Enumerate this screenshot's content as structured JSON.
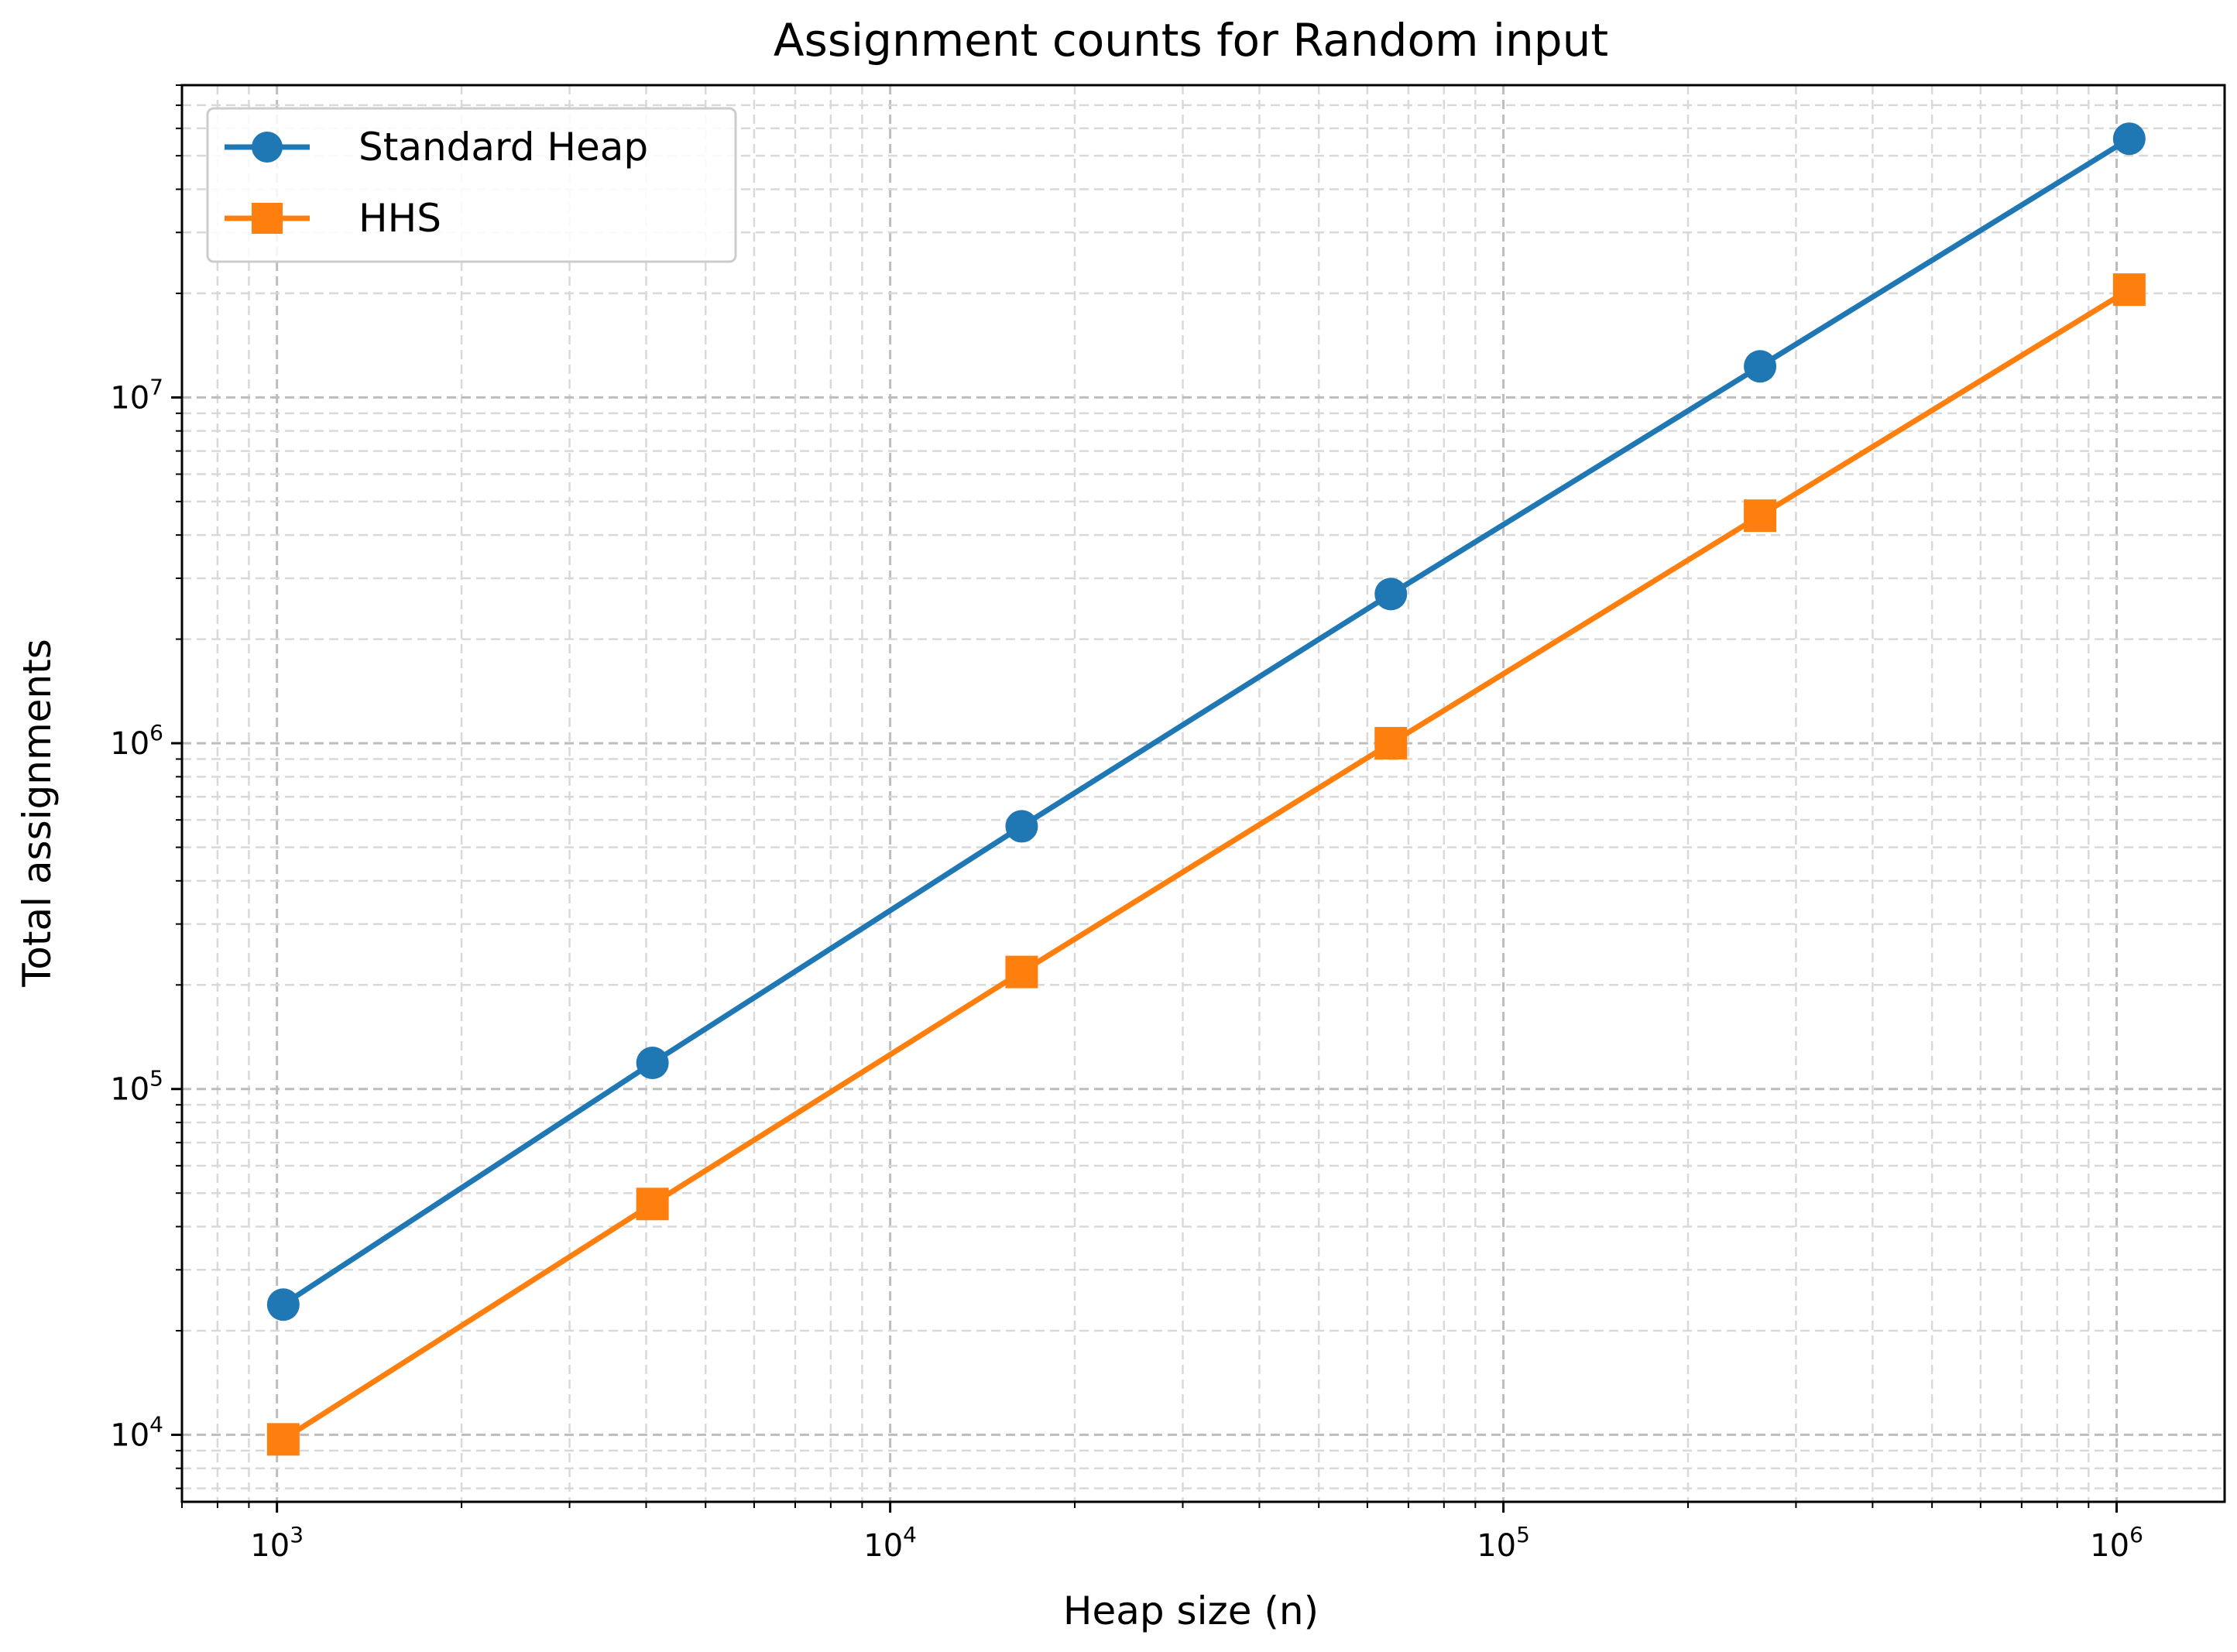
{
  "chart_data": {
    "type": "line",
    "title": "Assignment counts for Random input",
    "xlabel": "Heap size (n)",
    "ylabel": "Total assignments",
    "xscale": "log",
    "yscale": "log",
    "xlim": [
      700,
      1500000
    ],
    "ylim": [
      6400,
      80000000
    ],
    "grid": true,
    "grid_style": "dashed",
    "legend_position": "top-left",
    "x": [
      1024,
      4096,
      16384,
      65536,
      262144,
      1048576
    ],
    "series": [
      {
        "name": "Standard Heap",
        "marker": "circle",
        "color": "#1f77b4",
        "values": [
          23800,
          119000,
          575000,
          2700000,
          12300000,
          56000000
        ]
      },
      {
        "name": "HHS",
        "marker": "square",
        "color": "#ff7f0e",
        "values": [
          9700,
          46500,
          218000,
          1000000,
          4550000,
          20500000
        ]
      }
    ],
    "x_ticks": [
      {
        "value": 1000,
        "base": "10",
        "exp": "3"
      },
      {
        "value": 10000,
        "base": "10",
        "exp": "4"
      },
      {
        "value": 100000,
        "base": "10",
        "exp": "5"
      },
      {
        "value": 1000000,
        "base": "10",
        "exp": "6"
      }
    ],
    "y_ticks": [
      {
        "value": 10000,
        "base": "10",
        "exp": "4"
      },
      {
        "value": 100000,
        "base": "10",
        "exp": "5"
      },
      {
        "value": 1000000,
        "base": "10",
        "exp": "6"
      },
      {
        "value": 10000000,
        "base": "10",
        "exp": "7"
      }
    ]
  }
}
